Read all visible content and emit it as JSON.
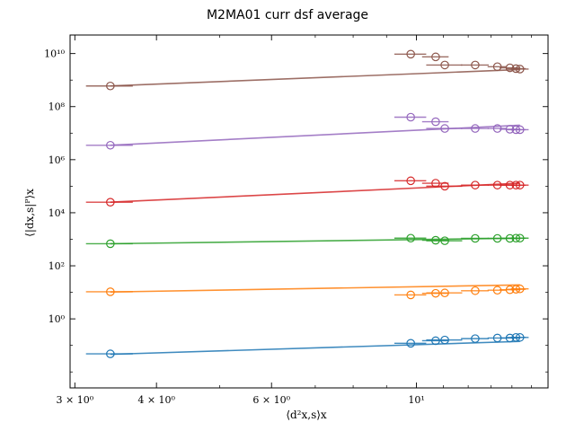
{
  "chart_data": {
    "type": "scatter",
    "title": "M2MA01 curr dsf average",
    "xlabel": "⟨d²x,s⟩x",
    "ylabel": "⟨|dx,s|ᴾ⟩x",
    "xscale": "log",
    "yscale": "log",
    "xlim": [
      2.95,
      15.9
    ],
    "ylim": [
      0.0025,
      50000000000
    ],
    "x_ticks": [
      {
        "value": 3,
        "label": "3 × 10⁰"
      },
      {
        "value": 4,
        "label": "4 × 10⁰"
      },
      {
        "value": 6,
        "label": "6 × 10⁰"
      },
      {
        "value": 10,
        "label": "10¹"
      }
    ],
    "y_ticks": [
      {
        "value": 1,
        "label": "10⁰"
      },
      {
        "value": 100,
        "label": "10²"
      },
      {
        "value": 10000,
        "label": "10⁴"
      },
      {
        "value": 1000000,
        "label": "10⁶"
      },
      {
        "value": 100000000,
        "label": "10⁸"
      },
      {
        "value": 10000000000,
        "label": "10¹⁰"
      }
    ],
    "x": [
      3.4,
      9.8,
      10.7,
      11.05,
      12.3,
      13.3,
      13.9,
      14.2,
      14.4
    ],
    "x_err": [
      0.28,
      0.55,
      0.5,
      0.7,
      0.6,
      0.45,
      0.5,
      0.5,
      0.45
    ],
    "grid": false,
    "series": [
      {
        "color": "#1f77b4",
        "fit": [
          0.046,
          0.141
        ],
        "values": [
          0.048,
          0.12,
          0.15,
          0.16,
          0.18,
          0.19,
          0.19,
          0.2,
          0.2
        ]
      },
      {
        "color": "#ff7f0e",
        "fit": [
          10.3,
          19.0
        ],
        "values": [
          10.5,
          8.0,
          9.2,
          9.5,
          11.5,
          12.0,
          12.5,
          13.0,
          13.5
        ]
      },
      {
        "color": "#2ca02c",
        "fit": [
          680,
          1100
        ],
        "values": [
          680,
          1100,
          920,
          880,
          1080,
          1080,
          1080,
          1100,
          1100
        ]
      },
      {
        "color": "#d62728",
        "fit": [
          25000,
          130000
        ],
        "values": [
          25000,
          160000,
          130000,
          100000,
          110000,
          110000,
          110000,
          110000,
          110000
        ]
      },
      {
        "color": "#9467bd",
        "fit": [
          3500000,
          20000000
        ],
        "values": [
          3500000,
          40000000,
          27000000,
          15000000,
          15000000,
          15000000,
          14000000,
          13500000,
          13500000
        ]
      },
      {
        "color": "#8c564b",
        "fit": [
          600000000,
          2500000000
        ],
        "values": [
          600000000,
          9500000000,
          7500000000,
          3700000000,
          3700000000,
          3200000000,
          2900000000,
          2700000000,
          2600000000
        ]
      }
    ]
  }
}
